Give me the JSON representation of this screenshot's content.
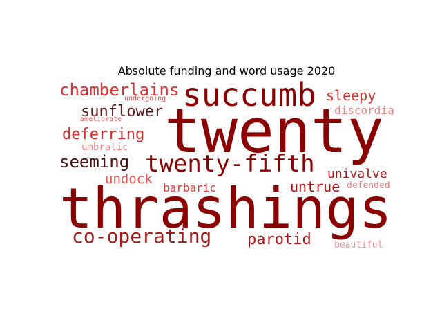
{
  "chart": {
    "type": "wordcloud",
    "title": "Absolute funding and word usage 2020",
    "words": [
      {
        "text": "thrashings",
        "color": "#8b0000"
      },
      {
        "text": "twenty",
        "color": "#8b0000"
      },
      {
        "text": "succumb",
        "color": "#8b0000"
      },
      {
        "text": "twenty-fifth",
        "color": "#8b0000"
      },
      {
        "text": "co-operating",
        "color": "#a61a1a"
      },
      {
        "text": "chamberlains",
        "color": "#e03030"
      },
      {
        "text": "sunflower",
        "color": "#5e1414"
      },
      {
        "text": "deferring",
        "color": "#d82a2a"
      },
      {
        "text": "seeming",
        "color": "#4a1010"
      },
      {
        "text": "sleepy",
        "color": "#d43030"
      },
      {
        "text": "discordia",
        "color": "#f08080"
      },
      {
        "text": "univalve",
        "color": "#b01414"
      },
      {
        "text": "untrue",
        "color": "#b01010"
      },
      {
        "text": "parotid",
        "color": "#b21414"
      },
      {
        "text": "undock",
        "color": "#f05050"
      },
      {
        "text": "barbaric",
        "color": "#e03838"
      },
      {
        "text": "umbratic",
        "color": "#f08484"
      },
      {
        "text": "defended",
        "color": "#f07a7a"
      },
      {
        "text": "beautiful",
        "color": "#f29090"
      },
      {
        "text": "undergoing",
        "color": "#e45050"
      },
      {
        "text": "ameliorate",
        "color": "#ee6666"
      }
    ]
  }
}
